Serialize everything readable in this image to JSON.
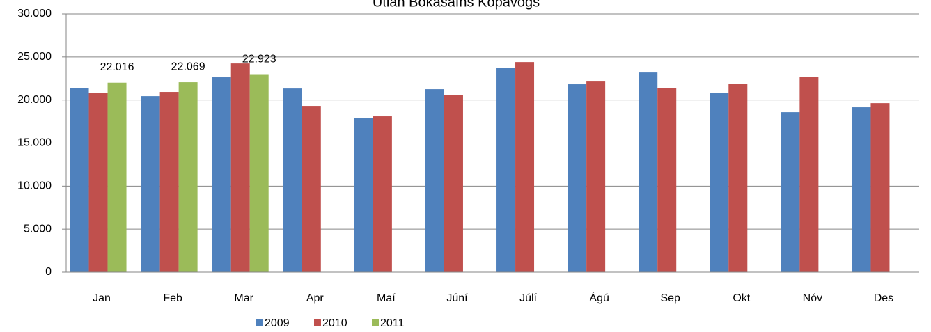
{
  "chart_data": {
    "type": "bar",
    "title": "Útlán Bókasafns Kópavogs",
    "categories": [
      "Jan",
      "Feb",
      "Mar",
      "Apr",
      "Maí",
      "Júní",
      "Júlí",
      "Ágú",
      "Sep",
      "Okt",
      "Nóv",
      "Des"
    ],
    "series": [
      {
        "name": "2009",
        "color": "#4f81bd",
        "values": [
          21400,
          20450,
          22640,
          21340,
          17870,
          21260,
          23770,
          21830,
          23200,
          20860,
          18590,
          19160
        ]
      },
      {
        "name": "2010",
        "color": "#c0504d",
        "values": [
          20850,
          20940,
          24250,
          19240,
          18110,
          20610,
          24410,
          22150,
          21420,
          21910,
          22720,
          19640
        ]
      },
      {
        "name": "2011",
        "color": "#9bbb59",
        "values": [
          22016,
          22069,
          22923,
          null,
          null,
          null,
          null,
          null,
          null,
          null,
          null,
          null
        ],
        "value_labels": [
          "22.016",
          "22.069",
          "22.923",
          null,
          null,
          null,
          null,
          null,
          null,
          null,
          null,
          null
        ]
      }
    ],
    "ylim": [
      0,
      30000
    ],
    "yticks": [
      0,
      {
        "value": 5000,
        "label": "5.000"
      },
      {
        "value": 10000,
        "label": "10.000"
      },
      {
        "value": 15000,
        "label": "15.000"
      },
      {
        "value": 20000,
        "label": "20.000"
      },
      {
        "value": 25000,
        "label": "25.000"
      },
      {
        "value": 30000,
        "label": "30.000"
      }
    ],
    "grid": true,
    "legend": "bottom"
  }
}
